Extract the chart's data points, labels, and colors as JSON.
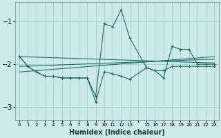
{
  "xlabel": "Humidex (Indice chaleur)",
  "bg_color": "#cceaea",
  "line_color": "#1e6b60",
  "grid_color": "#a8d0d0",
  "xlim": [
    -0.5,
    23.5
  ],
  "ylim": [
    -3.3,
    -0.55
  ],
  "yticks": [
    -3,
    -2,
    -1
  ],
  "xtick_labels": [
    "0",
    "1",
    "2",
    "3",
    "4",
    "5",
    "6",
    "7",
    "8",
    "9",
    "10",
    "11",
    "12",
    "13",
    "",
    "15",
    "16",
    "17",
    "18",
    "19",
    "20",
    "21",
    "22",
    "23"
  ],
  "xtick_pos": [
    0,
    1,
    2,
    3,
    4,
    5,
    6,
    7,
    8,
    9,
    10,
    11,
    12,
    13,
    14,
    15,
    16,
    17,
    18,
    19,
    20,
    21,
    22,
    23
  ],
  "series1_x": [
    0,
    1,
    2,
    3,
    4,
    5,
    6,
    7,
    8,
    9,
    10,
    11,
    12,
    13,
    15,
    16,
    17,
    18,
    19,
    20,
    21,
    22,
    23
  ],
  "series1_y": [
    -1.82,
    -2.05,
    -2.18,
    -2.28,
    -2.28,
    -2.32,
    -2.32,
    -2.32,
    -2.32,
    -2.75,
    -1.05,
    -1.12,
    -0.72,
    -1.38,
    -2.08,
    -2.15,
    -2.32,
    -1.58,
    -1.65,
    -1.65,
    -2.0,
    -2.0,
    -2.0
  ],
  "series2_x": [
    0,
    1,
    2,
    3,
    4,
    5,
    6,
    7,
    8,
    9,
    10,
    11,
    12,
    13,
    15,
    16,
    17,
    18,
    19,
    20,
    21,
    22,
    23
  ],
  "series2_y": [
    -1.82,
    -2.05,
    -2.18,
    -2.28,
    -2.28,
    -2.32,
    -2.32,
    -2.32,
    -2.32,
    -2.88,
    -2.18,
    -2.22,
    -2.28,
    -2.35,
    -2.08,
    -2.15,
    -2.15,
    -2.05,
    -2.05,
    -2.05,
    -2.05,
    -2.05,
    -2.05
  ],
  "trend1_x": [
    0,
    23
  ],
  "trend1_y": [
    -1.82,
    -1.97
  ],
  "trend2_x": [
    0,
    23
  ],
  "trend2_y": [
    -2.05,
    -1.88
  ],
  "trend3_x": [
    0,
    23
  ],
  "trend3_y": [
    -2.18,
    -1.82
  ]
}
